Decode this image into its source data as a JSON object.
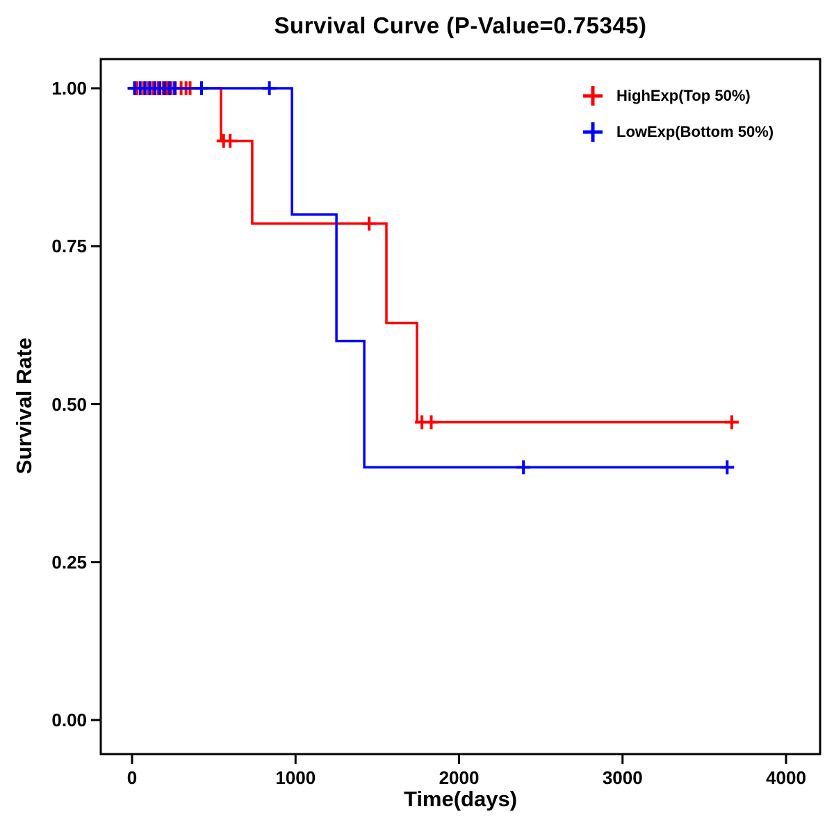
{
  "chart_data": {
    "type": "line",
    "subtype": "kaplan-meier-step",
    "title": "Survival Curve (P-Value=0.75345)",
    "p_value": "0.75345",
    "xlabel": "Time(days)",
    "ylabel": "Survival Rate",
    "xlim": [
      0,
      4000
    ],
    "ylim": [
      0,
      1
    ],
    "xticks": [
      0,
      1000,
      2000,
      3000,
      4000
    ],
    "xtick_labels": [
      "0",
      "1000",
      "2000",
      "3000",
      "4000"
    ],
    "yticks": [
      0.0,
      0.25,
      0.5,
      0.75,
      1.0
    ],
    "ytick_labels": [
      "0.00",
      "0.25",
      "0.50",
      "0.75",
      "1.00"
    ],
    "grid": false,
    "legend_position": "top-right-inside",
    "marker": "plus-censor-tick",
    "series": [
      {
        "name": "HighExp(Top 50%)",
        "color": "#FF0000",
        "steps": [
          [
            0,
            1.0
          ],
          [
            544,
            0.9167
          ],
          [
            735,
            0.7857
          ],
          [
            1556,
            0.6286
          ],
          [
            1743,
            0.4714
          ]
        ],
        "end_time": 3668,
        "censors": [
          [
            30,
            1.0
          ],
          [
            70,
            1.0
          ],
          [
            100,
            1.0
          ],
          [
            130,
            1.0
          ],
          [
            160,
            1.0
          ],
          [
            190,
            1.0
          ],
          [
            215,
            1.0
          ],
          [
            240,
            1.0
          ],
          [
            265,
            1.0
          ],
          [
            300,
            1.0
          ],
          [
            330,
            1.0
          ],
          [
            355,
            1.0
          ],
          [
            560,
            0.9167
          ],
          [
            600,
            0.9167
          ],
          [
            1450,
            0.7857
          ],
          [
            1773,
            0.4714
          ],
          [
            1830,
            0.4714
          ],
          [
            3668,
            0.4714
          ]
        ]
      },
      {
        "name": "LowExp(Bottom 50%)",
        "color": "#0000FF",
        "steps": [
          [
            0,
            1.0
          ],
          [
            978,
            0.8
          ],
          [
            1250,
            0.6
          ],
          [
            1420,
            0.4
          ]
        ],
        "end_time": 3640,
        "censors": [
          [
            15,
            1.0
          ],
          [
            50,
            1.0
          ],
          [
            80,
            1.0
          ],
          [
            110,
            1.0
          ],
          [
            140,
            1.0
          ],
          [
            170,
            1.0
          ],
          [
            200,
            1.0
          ],
          [
            230,
            1.0
          ],
          [
            260,
            1.0
          ],
          [
            425,
            1.0
          ],
          [
            840,
            1.0
          ],
          [
            2394,
            0.4
          ],
          [
            3640,
            0.4
          ]
        ]
      }
    ]
  }
}
